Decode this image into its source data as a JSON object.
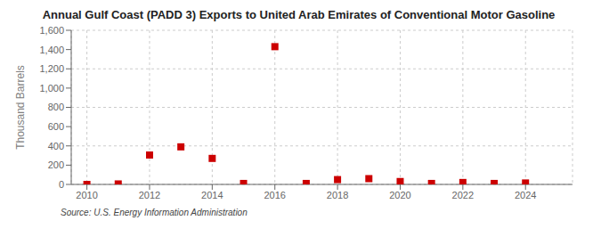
{
  "chart_data": {
    "type": "scatter",
    "title": "Annual Gulf Coast (PADD 3) Exports to United Arab Emirates of Conventional Motor Gasoline",
    "ylabel": "Thousand Barrels",
    "source": "Source: U.S. Energy Information Administration",
    "x": [
      2010,
      2011,
      2012,
      2013,
      2014,
      2015,
      2016,
      2017,
      2018,
      2019,
      2020,
      2021,
      2022,
      2023,
      2024
    ],
    "values": [
      0,
      5,
      305,
      390,
      270,
      10,
      1430,
      10,
      50,
      60,
      30,
      10,
      20,
      10,
      15
    ],
    "color": "#cc0000",
    "marker": "square",
    "xlim": [
      2009.5,
      2025.5
    ],
    "xticks": [
      2010,
      2012,
      2014,
      2016,
      2018,
      2020,
      2022,
      2024
    ],
    "ylim": [
      0,
      1600
    ],
    "yticks": [
      0,
      200,
      400,
      600,
      800,
      {
        "value": 1000,
        "label": "1,000"
      },
      {
        "value": 1200,
        "label": "1,200"
      },
      {
        "value": 1400,
        "label": "1,400"
      },
      {
        "value": 1600,
        "label": "1,600"
      }
    ],
    "grid": true
  }
}
